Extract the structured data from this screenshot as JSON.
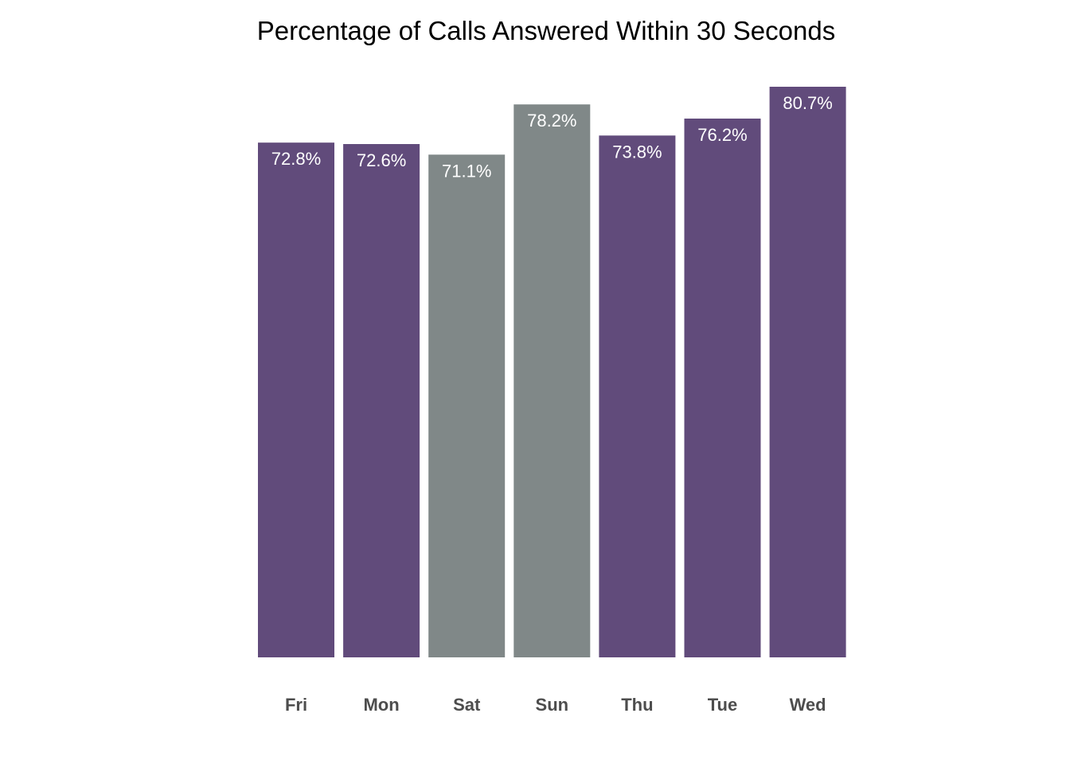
{
  "chart_data": {
    "type": "bar",
    "title": "Percentage of Calls Answered Within 30 Seconds",
    "xlabel": "",
    "ylabel": "",
    "categories": [
      "Fri",
      "Mon",
      "Sat",
      "Sun",
      "Thu",
      "Tue",
      "Wed"
    ],
    "values": [
      72.8,
      72.6,
      71.1,
      78.2,
      73.8,
      76.2,
      80.7
    ],
    "data_labels": [
      "72.8%",
      "72.6%",
      "71.1%",
      "78.2%",
      "73.8%",
      "76.2%",
      "80.7%"
    ],
    "highlight": [
      "weekday",
      "weekday",
      "weekend",
      "weekend",
      "weekday",
      "weekday",
      "weekday"
    ],
    "colors": {
      "weekday": "#614b7b",
      "weekend": "#808888"
    },
    "ylim": [
      0,
      80.7
    ],
    "grid": false,
    "legend": "none"
  }
}
